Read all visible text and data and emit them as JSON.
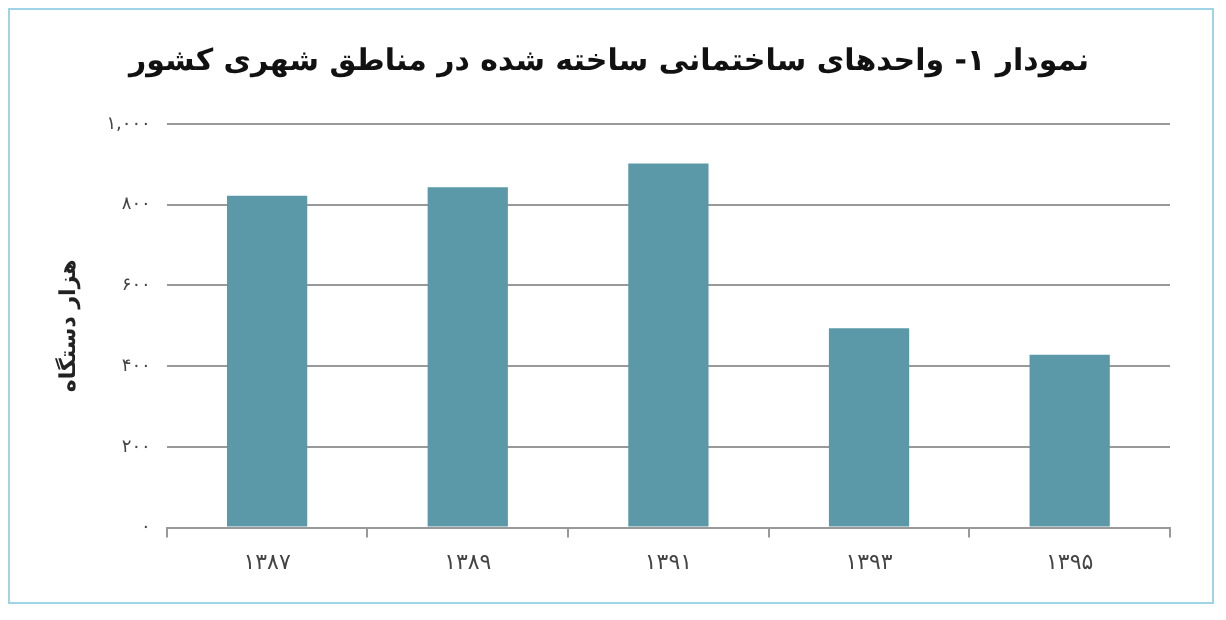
{
  "chart_data": {
    "type": "bar",
    "title": "نمودار ۱- واحدهای ساختمانی ساخته شده در مناطق شهری کشور",
    "ylabel": "هزار دستگاه",
    "categories": [
      "۱۳۸۷",
      "۱۳۸۹",
      "۱۳۹۱",
      "۱۳۹۳",
      "۱۳۹۵"
    ],
    "values": [
      822,
      843,
      902,
      494,
      428
    ],
    "color": "#5b98a8",
    "ylim": [
      0,
      1000
    ],
    "yticks": [
      {
        "value": 0,
        "label": "۰"
      },
      {
        "value": 200,
        "label": "۲۰۰"
      },
      {
        "value": 400,
        "label": "۴۰۰"
      },
      {
        "value": 600,
        "label": "۶۰۰"
      },
      {
        "value": 800,
        "label": "۸۰۰"
      },
      {
        "value": 1000,
        "label": "۱,۰۰۰"
      }
    ],
    "grid": "y",
    "legend": false
  }
}
